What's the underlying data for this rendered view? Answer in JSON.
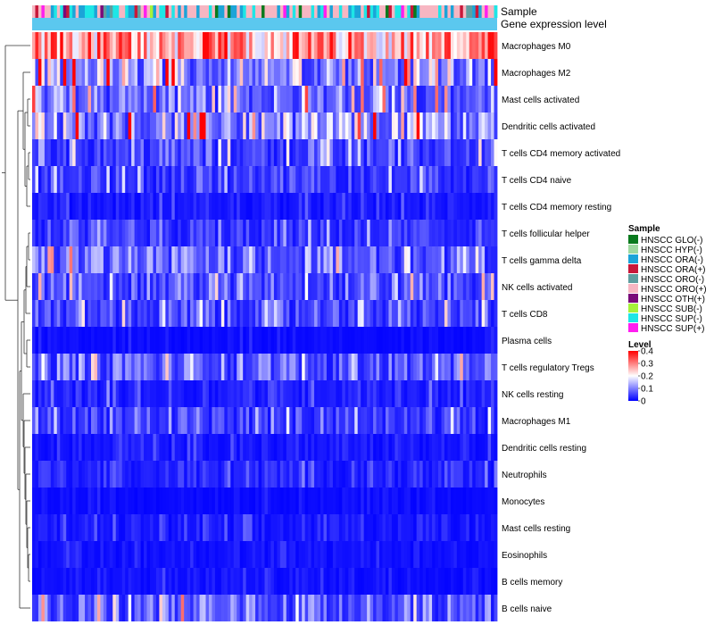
{
  "chart_data": {
    "type": "heatmap",
    "title": "",
    "annotation_rows": [
      "Sample",
      "Gene expression level"
    ],
    "rows": [
      "Macrophages M0",
      "Macrophages M2",
      "Mast cells activated",
      "Dendritic cells activated",
      "T cells CD4 memory activated",
      "T cells CD4 naive",
      "T cells CD4 memory resting",
      "T cells follicular helper",
      "T cells gamma delta",
      "NK cells activated",
      "T cells CD8",
      "Plasma cells",
      "T cells regulatory  Tregs",
      "NK cells resting",
      "Macrophages M1",
      "Dendritic cells resting",
      "Neutrophils",
      "Monocytes",
      "Mast cells resting",
      "Eosinophils",
      "B cells memory",
      "B cells naive"
    ],
    "row_mean_levels": [
      0.28,
      0.13,
      0.09,
      0.12,
      0.06,
      0.05,
      0.02,
      0.04,
      0.08,
      0.07,
      0.06,
      0.01,
      0.07,
      0.03,
      0.05,
      0.02,
      0.03,
      0.01,
      0.02,
      0.015,
      0.015,
      0.08
    ],
    "n_columns": 150,
    "sample_legend": {
      "title": "Sample",
      "items": [
        {
          "label": "HNSCC GLO(-)",
          "color": "#0a7a1e"
        },
        {
          "label": "HNSCC HYP(-)",
          "color": "#9fd9a0"
        },
        {
          "label": "HNSCC ORA(-)",
          "color": "#1ca4d8"
        },
        {
          "label": "HNSCC ORA(+)",
          "color": "#c8183a"
        },
        {
          "label": "HNSCC ORO(-)",
          "color": "#5f9ea0"
        },
        {
          "label": "HNSCC ORO(+)",
          "color": "#f7b6c2"
        },
        {
          "label": "HNSCC OTH(+)",
          "color": "#7a0a7a"
        },
        {
          "label": "HNSCC SUB(-)",
          "color": "#a6f23a"
        },
        {
          "label": "HNSCC SUP(-)",
          "color": "#1ee6e6"
        },
        {
          "label": "HNSCC SUP(+)",
          "color": "#ff1ef0"
        }
      ]
    },
    "level_legend": {
      "title": "Level",
      "ticks": [
        "0.4",
        "0.3",
        "0.2",
        "0.1",
        "0"
      ],
      "tick_values": [
        0.4,
        0.3,
        0.2,
        0.1,
        0
      ],
      "min": 0,
      "max": 0.4
    },
    "gene_expression_bar_color": "#5bc8ef",
    "colors": {
      "low": "#0000ff",
      "mid": "#ffffff",
      "high": "#ff0000"
    }
  }
}
